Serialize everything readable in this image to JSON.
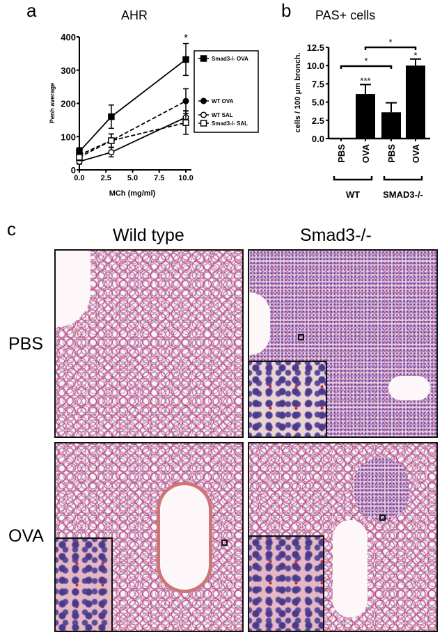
{
  "panel_labels": {
    "a": "a",
    "b": "b",
    "c": "c"
  },
  "chart_data": [
    {
      "type": "line",
      "title": "AHR",
      "xlabel": "MCh (mg/ml)",
      "ylabel": "Penh average",
      "xlim": [
        0,
        10
      ],
      "ylim": [
        0,
        400
      ],
      "xticks": [
        "0.0",
        "2.5",
        "5.0",
        "7.5",
        "10.0"
      ],
      "xtick_values": [
        0,
        2.5,
        5,
        7.5,
        10
      ],
      "yticks": [
        "0",
        "100",
        "200",
        "300",
        "400"
      ],
      "ytick_values": [
        0,
        100,
        200,
        300,
        400
      ],
      "x": [
        0,
        3,
        10
      ],
      "legend_position": "right",
      "series": [
        {
          "name": "Smad3-/- OVA",
          "marker": "filled-square",
          "dash": false,
          "values": [
            55,
            160,
            332
          ],
          "errors": [
            12,
            35,
            48
          ]
        },
        {
          "name": "WT OVA",
          "marker": "filled-circle",
          "dash": true,
          "values": [
            45,
            88,
            207
          ],
          "errors": [
            10,
            20,
            37
          ]
        },
        {
          "name": "WT SAL",
          "marker": "open-circle",
          "dash": false,
          "values": [
            25,
            53,
            158
          ],
          "errors": [
            8,
            14,
            20
          ]
        },
        {
          "name": "Smad3-/- SAL",
          "marker": "open-square",
          "dash": true,
          "values": [
            38,
            88,
            142
          ],
          "errors": [
            10,
            20,
            35
          ]
        }
      ],
      "annotations": [
        {
          "x": 10,
          "text": "*"
        }
      ]
    },
    {
      "type": "bar",
      "title": "PAS+ cells",
      "ylabel": "cells / 100 μm bronch.",
      "ylim": [
        0,
        12.5
      ],
      "yticks": [
        "0.0",
        "2.5",
        "5.0",
        "7.5",
        "10.0",
        "12.5"
      ],
      "ytick_values": [
        0,
        2.5,
        5,
        7.5,
        10,
        12.5
      ],
      "categories": [
        "PBS",
        "OVA",
        "PBS",
        "OVA"
      ],
      "groups": [
        {
          "name": "WT",
          "members": [
            0,
            1
          ]
        },
        {
          "name": "SMAD3-/-",
          "members": [
            2,
            3
          ]
        }
      ],
      "values": [
        0,
        6.1,
        3.6,
        10.0
      ],
      "errors": [
        0,
        1.3,
        1.3,
        0.9
      ],
      "bar_labels": [
        "",
        "***",
        "",
        "*"
      ],
      "brackets": [
        {
          "from": 0,
          "to": 2,
          "text": "*"
        },
        {
          "from": 1,
          "to": 3,
          "text": "*"
        }
      ],
      "color": "#000000"
    }
  ],
  "micrographs": {
    "columns": [
      "Wild type",
      "Smad3-/-"
    ],
    "rows": [
      "PBS",
      "OVA"
    ]
  }
}
